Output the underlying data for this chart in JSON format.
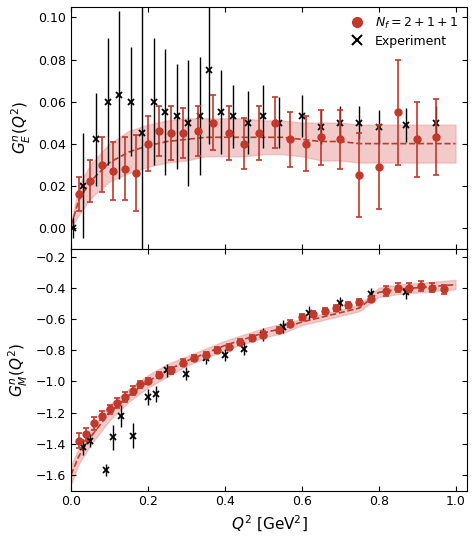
{
  "upper_lattice_x": [
    0.02,
    0.05,
    0.08,
    0.11,
    0.14,
    0.17,
    0.2,
    0.23,
    0.26,
    0.29,
    0.33,
    0.37,
    0.41,
    0.45,
    0.49,
    0.53,
    0.57,
    0.61,
    0.65,
    0.7,
    0.75,
    0.8,
    0.85,
    0.9,
    0.95
  ],
  "upper_lattice_y": [
    0.016,
    0.022,
    0.03,
    0.027,
    0.028,
    0.026,
    0.04,
    0.046,
    0.045,
    0.045,
    0.046,
    0.05,
    0.045,
    0.04,
    0.045,
    0.05,
    0.042,
    0.04,
    0.043,
    0.042,
    0.025,
    0.029,
    0.055,
    0.042,
    0.043
  ],
  "upper_lattice_yerr": [
    0.008,
    0.01,
    0.013,
    0.014,
    0.015,
    0.018,
    0.013,
    0.012,
    0.013,
    0.012,
    0.012,
    0.013,
    0.013,
    0.012,
    0.013,
    0.012,
    0.013,
    0.013,
    0.013,
    0.014,
    0.02,
    0.02,
    0.025,
    0.018,
    0.018
  ],
  "upper_exp_x": [
    0.005,
    0.03,
    0.065,
    0.095,
    0.125,
    0.155,
    0.185,
    0.215,
    0.245,
    0.275,
    0.305,
    0.335,
    0.36,
    0.39,
    0.42,
    0.46,
    0.5,
    0.54,
    0.6,
    0.65,
    0.7,
    0.75,
    0.8,
    0.87,
    0.95
  ],
  "upper_exp_y": [
    0.0,
    0.02,
    0.042,
    0.06,
    0.063,
    0.06,
    0.045,
    0.06,
    0.055,
    0.053,
    0.05,
    0.053,
    0.075,
    0.055,
    0.053,
    0.05,
    0.053,
    0.05,
    0.053,
    0.048,
    0.05,
    0.05,
    0.048,
    0.049,
    0.05
  ],
  "upper_exp_yerr": [
    0.005,
    0.025,
    0.022,
    0.03,
    0.04,
    0.026,
    0.06,
    0.03,
    0.03,
    0.025,
    0.03,
    0.028,
    0.035,
    0.02,
    0.015,
    0.015,
    0.015,
    0.012,
    0.01,
    0.008,
    0.008,
    0.008,
    0.008,
    0.008,
    0.008
  ],
  "upper_band_x": [
    0.0,
    0.02,
    0.05,
    0.1,
    0.15,
    0.2,
    0.25,
    0.3,
    0.35,
    0.4,
    0.45,
    0.5,
    0.55,
    0.6,
    0.65,
    0.7,
    0.75,
    0.8,
    0.85,
    0.9,
    0.95,
    1.0
  ],
  "upper_band_center": [
    0.001,
    0.013,
    0.022,
    0.031,
    0.036,
    0.039,
    0.041,
    0.042,
    0.043,
    0.043,
    0.043,
    0.043,
    0.043,
    0.042,
    0.041,
    0.041,
    0.04,
    0.04,
    0.04,
    0.04,
    0.04,
    0.04
  ],
  "upper_band_upper": [
    0.002,
    0.02,
    0.03,
    0.04,
    0.046,
    0.049,
    0.051,
    0.052,
    0.052,
    0.052,
    0.052,
    0.051,
    0.051,
    0.05,
    0.05,
    0.05,
    0.049,
    0.049,
    0.049,
    0.049,
    0.049,
    0.049
  ],
  "upper_band_lower": [
    0.0,
    0.006,
    0.014,
    0.022,
    0.026,
    0.029,
    0.031,
    0.032,
    0.034,
    0.034,
    0.034,
    0.035,
    0.035,
    0.034,
    0.032,
    0.032,
    0.031,
    0.031,
    0.031,
    0.031,
    0.031,
    0.031
  ],
  "lower_lattice_x": [
    0.02,
    0.04,
    0.06,
    0.08,
    0.1,
    0.12,
    0.14,
    0.16,
    0.18,
    0.2,
    0.23,
    0.26,
    0.29,
    0.32,
    0.35,
    0.38,
    0.41,
    0.44,
    0.47,
    0.5,
    0.54,
    0.57,
    0.6,
    0.63,
    0.66,
    0.69,
    0.72,
    0.75,
    0.78,
    0.82,
    0.85,
    0.88,
    0.91,
    0.94,
    0.97
  ],
  "lower_lattice_y": [
    -1.38,
    -1.34,
    -1.27,
    -1.22,
    -1.18,
    -1.14,
    -1.1,
    -1.06,
    -1.02,
    -1.0,
    -0.96,
    -0.93,
    -0.88,
    -0.85,
    -0.83,
    -0.8,
    -0.78,
    -0.75,
    -0.72,
    -0.7,
    -0.67,
    -0.63,
    -0.59,
    -0.57,
    -0.55,
    -0.53,
    -0.51,
    -0.49,
    -0.47,
    -0.42,
    -0.4,
    -0.4,
    -0.39,
    -0.4,
    -0.41
  ],
  "lower_lattice_yerr": [
    0.05,
    0.04,
    0.04,
    0.03,
    0.03,
    0.03,
    0.03,
    0.03,
    0.02,
    0.02,
    0.02,
    0.02,
    0.02,
    0.02,
    0.02,
    0.02,
    0.02,
    0.02,
    0.02,
    0.02,
    0.02,
    0.02,
    0.02,
    0.02,
    0.02,
    0.02,
    0.02,
    0.02,
    0.02,
    0.03,
    0.03,
    0.03,
    0.03,
    0.03,
    0.03
  ],
  "lower_exp_x": [
    0.03,
    0.05,
    0.09,
    0.11,
    0.13,
    0.16,
    0.2,
    0.22,
    0.25,
    0.3,
    0.35,
    0.4,
    0.45,
    0.5,
    0.55,
    0.62,
    0.7,
    0.78,
    0.87
  ],
  "lower_exp_y": [
    -1.42,
    -1.38,
    -1.57,
    -1.36,
    -1.22,
    -1.35,
    -1.1,
    -1.08,
    -0.93,
    -0.95,
    -0.85,
    -0.83,
    -0.79,
    -0.7,
    -0.65,
    -0.56,
    -0.5,
    -0.44,
    -0.43
  ],
  "lower_exp_yerr": [
    0.05,
    0.04,
    0.04,
    0.08,
    0.07,
    0.08,
    0.05,
    0.05,
    0.04,
    0.04,
    0.04,
    0.04,
    0.04,
    0.04,
    0.04,
    0.04,
    0.04,
    0.04,
    0.04
  ],
  "lower_band_x": [
    0.0,
    0.02,
    0.05,
    0.1,
    0.15,
    0.2,
    0.25,
    0.3,
    0.35,
    0.4,
    0.45,
    0.5,
    0.55,
    0.6,
    0.65,
    0.7,
    0.75,
    0.8,
    0.85,
    0.9,
    0.95,
    1.0
  ],
  "lower_band_center": [
    -1.6,
    -1.48,
    -1.36,
    -1.2,
    -1.09,
    -1.0,
    -0.93,
    -0.87,
    -0.82,
    -0.77,
    -0.73,
    -0.69,
    -0.66,
    -0.62,
    -0.59,
    -0.56,
    -0.53,
    -0.43,
    -0.41,
    -0.4,
    -0.39,
    -0.38
  ],
  "lower_band_upper": [
    -1.54,
    -1.43,
    -1.31,
    -1.15,
    -1.05,
    -0.96,
    -0.89,
    -0.84,
    -0.79,
    -0.74,
    -0.7,
    -0.66,
    -0.63,
    -0.6,
    -0.57,
    -0.54,
    -0.51,
    -0.4,
    -0.38,
    -0.37,
    -0.36,
    -0.35
  ],
  "lower_band_lower": [
    -1.66,
    -1.53,
    -1.41,
    -1.25,
    -1.13,
    -1.04,
    -0.97,
    -0.9,
    -0.85,
    -0.8,
    -0.76,
    -0.72,
    -0.69,
    -0.64,
    -0.61,
    -0.58,
    -0.55,
    -0.46,
    -0.44,
    -0.43,
    -0.42,
    -0.41
  ],
  "lattice_color": "#c0392b",
  "band_color": "#e8a0a0",
  "dashed_color": "#c0392b",
  "exp_color": "black",
  "upper_ylabel": "$G_E^n(Q^2)$",
  "lower_ylabel": "$G_M^n(Q^2)$",
  "xlabel": "$Q^2$ [GeV$^2$]",
  "upper_ylim": [
    -0.01,
    0.105
  ],
  "upper_yticks": [
    0.0,
    0.02,
    0.04,
    0.06,
    0.08,
    0.1
  ],
  "lower_ylim": [
    -1.7,
    -0.15
  ],
  "lower_yticks": [
    -1.6,
    -1.4,
    -1.2,
    -1.0,
    -0.8,
    -0.6,
    -0.4,
    -0.2
  ],
  "xlim": [
    0.0,
    1.03
  ],
  "xticks": [
    0.0,
    0.2,
    0.4,
    0.6,
    0.8,
    1.0
  ],
  "legend_label_lattice": "$N_f = 2+1+1$",
  "legend_label_exp": "Experiment",
  "figsize": [
    4.74,
    5.41
  ],
  "dpi": 100
}
